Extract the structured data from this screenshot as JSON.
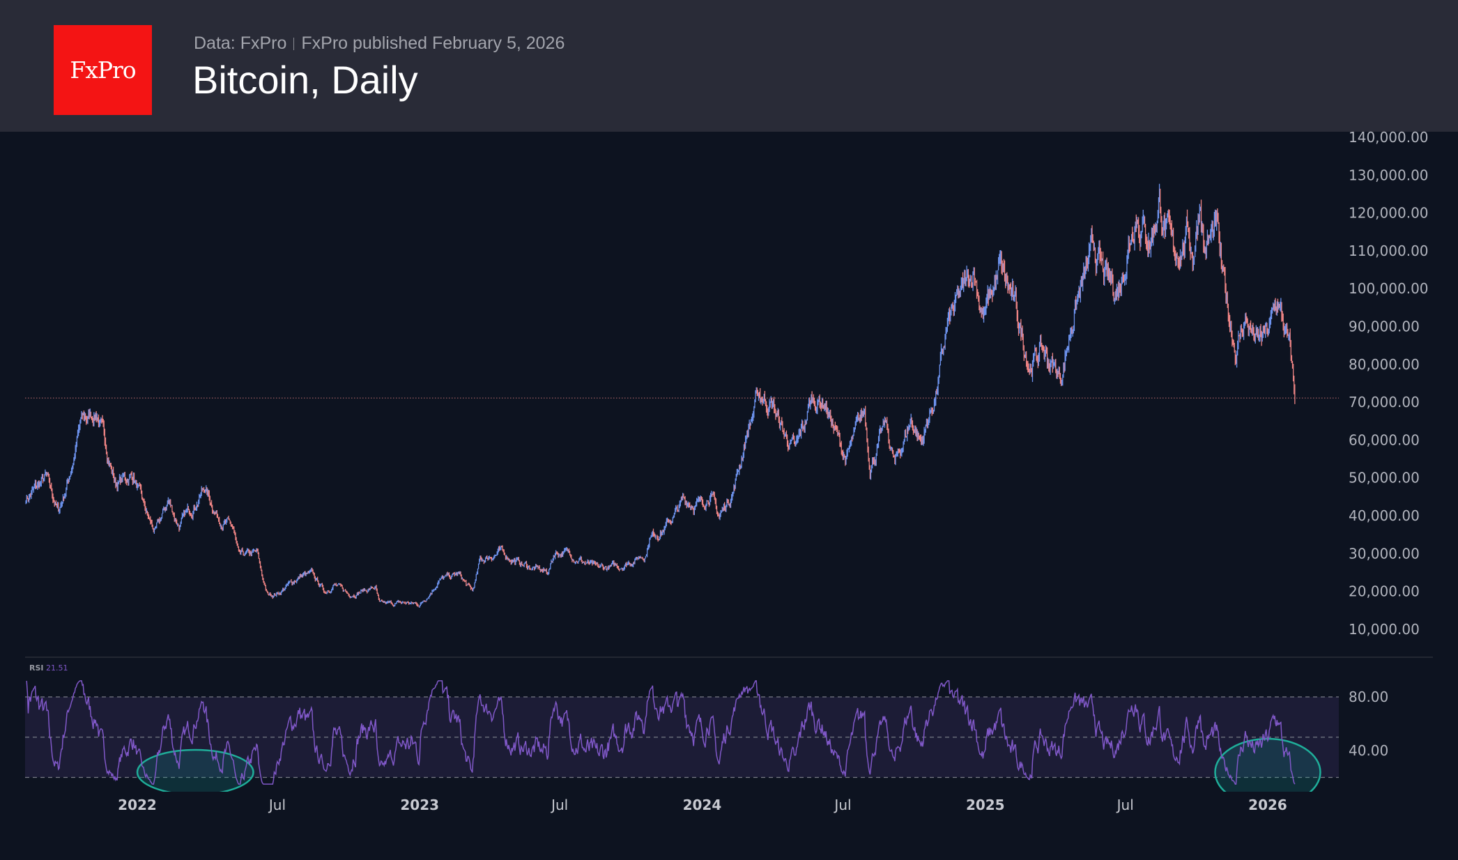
{
  "header": {
    "logo_text": "FxPro",
    "data_source": "Data: FxPro",
    "published": "FxPro published February 5, 2026",
    "title": "Bitcoin, Daily"
  },
  "colors": {
    "up": "#6e94f0",
    "down": "#f08585",
    "rsi": "#8058c8",
    "rsi_band": "#1c1c36",
    "highlight": "#1fae9a",
    "header_bg": "#292b37",
    "bg": "#0d1320",
    "logo": "#f41414"
  },
  "chart_data": [
    {
      "type": "candlestick",
      "title": "Bitcoin, Daily",
      "ylim": [
        0,
        140000
      ],
      "y_ticks": [
        "140,000.00",
        "130,000.00",
        "120,000.00",
        "110,000.00",
        "100,000.00",
        "90,000.00",
        "80,000.00",
        "70,000.00",
        "60,000.00",
        "50,000.00",
        "40,000.00",
        "30,000.00",
        "20,000.00",
        "10,000.00"
      ],
      "y_tick_values": [
        140000,
        130000,
        120000,
        110000,
        100000,
        90000,
        80000,
        70000,
        60000,
        50000,
        40000,
        30000,
        20000,
        10000
      ],
      "x_ticks": [
        {
          "label": "2022",
          "date": "2022-01-01",
          "year": true
        },
        {
          "label": "Jul",
          "date": "2022-07-01",
          "year": false
        },
        {
          "label": "2023",
          "date": "2023-01-01",
          "year": true
        },
        {
          "label": "Jul",
          "date": "2023-07-01",
          "year": false
        },
        {
          "label": "2024",
          "date": "2024-01-01",
          "year": true
        },
        {
          "label": "Jul",
          "date": "2024-07-01",
          "year": false
        },
        {
          "label": "2025",
          "date": "2025-01-01",
          "year": true
        },
        {
          "label": "Jul",
          "date": "2025-07-01",
          "year": false
        },
        {
          "label": "2026",
          "date": "2026-01-01",
          "year": true
        }
      ],
      "price_line": 71100,
      "closes": [
        [
          "2021-08-10",
          44500
        ],
        [
          "2021-09-05",
          50000
        ],
        [
          "2021-09-21",
          41000
        ],
        [
          "2021-10-01",
          47500
        ],
        [
          "2021-10-20",
          64500
        ],
        [
          "2021-11-10",
          67500
        ],
        [
          "2021-11-26",
          55000
        ],
        [
          "2021-12-04",
          48500
        ],
        [
          "2021-12-27",
          50800
        ],
        [
          "2022-01-10",
          41800
        ],
        [
          "2022-01-24",
          35500
        ],
        [
          "2022-02-10",
          44000
        ],
        [
          "2022-02-24",
          37500
        ],
        [
          "2022-03-29",
          47500
        ],
        [
          "2022-04-15",
          40000
        ],
        [
          "2022-05-05",
          36500
        ],
        [
          "2022-05-12",
          29000
        ],
        [
          "2022-06-05",
          30000
        ],
        [
          "2022-06-18",
          19000
        ],
        [
          "2022-07-01",
          19500
        ],
        [
          "2022-07-30",
          24000
        ],
        [
          "2022-08-14",
          24500
        ],
        [
          "2022-09-01",
          20000
        ],
        [
          "2022-09-12",
          22000
        ],
        [
          "2022-10-01",
          19300
        ],
        [
          "2022-11-05",
          21000
        ],
        [
          "2022-11-10",
          16500
        ],
        [
          "2022-12-15",
          17000
        ],
        [
          "2023-01-01",
          16500
        ],
        [
          "2023-01-25",
          23000
        ],
        [
          "2023-02-20",
          24500
        ],
        [
          "2023-03-10",
          20000
        ],
        [
          "2023-03-20",
          28000
        ],
        [
          "2023-04-14",
          30500
        ],
        [
          "2023-05-15",
          27000
        ],
        [
          "2023-06-15",
          25000
        ],
        [
          "2023-06-25",
          30500
        ],
        [
          "2023-07-15",
          30000
        ],
        [
          "2023-08-17",
          26000
        ],
        [
          "2023-09-15",
          26500
        ],
        [
          "2023-10-20",
          30000
        ],
        [
          "2023-10-25",
          34500
        ],
        [
          "2023-11-15",
          37000
        ],
        [
          "2023-12-08",
          44000
        ],
        [
          "2024-01-01",
          43000
        ],
        [
          "2024-01-11",
          46500
        ],
        [
          "2024-01-23",
          39500
        ],
        [
          "2024-02-10",
          47000
        ],
        [
          "2024-02-28",
          62000
        ],
        [
          "2024-03-14",
          72000
        ],
        [
          "2024-04-01",
          69500
        ],
        [
          "2024-04-17",
          61000
        ],
        [
          "2024-05-01",
          57000
        ],
        [
          "2024-05-21",
          70500
        ],
        [
          "2024-06-07",
          70500
        ],
        [
          "2024-07-05",
          55000
        ],
        [
          "2024-07-29",
          68000
        ],
        [
          "2024-08-05",
          53500
        ],
        [
          "2024-08-25",
          64000
        ],
        [
          "2024-09-06",
          53500
        ],
        [
          "2024-09-27",
          65500
        ],
        [
          "2024-10-10",
          59500
        ],
        [
          "2024-10-29",
          72000
        ],
        [
          "2024-11-13",
          90000
        ],
        [
          "2024-12-17",
          105500
        ],
        [
          "2024-12-30",
          92500
        ],
        [
          "2025-01-20",
          105000
        ],
        [
          "2025-02-05",
          97000
        ],
        [
          "2025-02-28",
          80000
        ],
        [
          "2025-03-15",
          84000
        ],
        [
          "2025-04-08",
          76500
        ],
        [
          "2025-04-25",
          94000
        ],
        [
          "2025-05-22",
          110500
        ],
        [
          "2025-06-05",
          101500
        ],
        [
          "2025-06-22",
          100000
        ],
        [
          "2025-07-14",
          121500
        ],
        [
          "2025-08-02",
          113000
        ],
        [
          "2025-08-14",
          123000
        ],
        [
          "2025-09-01",
          108000
        ],
        [
          "2025-09-20",
          115500
        ],
        [
          "2025-09-26",
          109000
        ],
        [
          "2025-10-06",
          124500
        ],
        [
          "2025-10-11",
          111000
        ],
        [
          "2025-10-27",
          115000
        ],
        [
          "2025-11-04",
          101500
        ],
        [
          "2025-11-21",
          84000
        ],
        [
          "2025-12-03",
          92500
        ],
        [
          "2025-12-18",
          85500
        ],
        [
          "2026-01-01",
          88000
        ],
        [
          "2026-01-14",
          96500
        ],
        [
          "2026-01-30",
          83000
        ],
        [
          "2026-02-05",
          71100
        ]
      ]
    },
    {
      "type": "line",
      "name": "RSI",
      "label": "RSI",
      "current_value": "21.51",
      "ylim": [
        20,
        80
      ],
      "y_ticks": [
        "80.00",
        "40.00"
      ],
      "y_tick_values": [
        80,
        40
      ],
      "bands": [
        80,
        50,
        20
      ],
      "highlights": [
        {
          "from": "2022-01-01",
          "to": "2022-05-31"
        },
        {
          "from": "2025-10-25",
          "to": "2026-03-10"
        }
      ]
    }
  ]
}
